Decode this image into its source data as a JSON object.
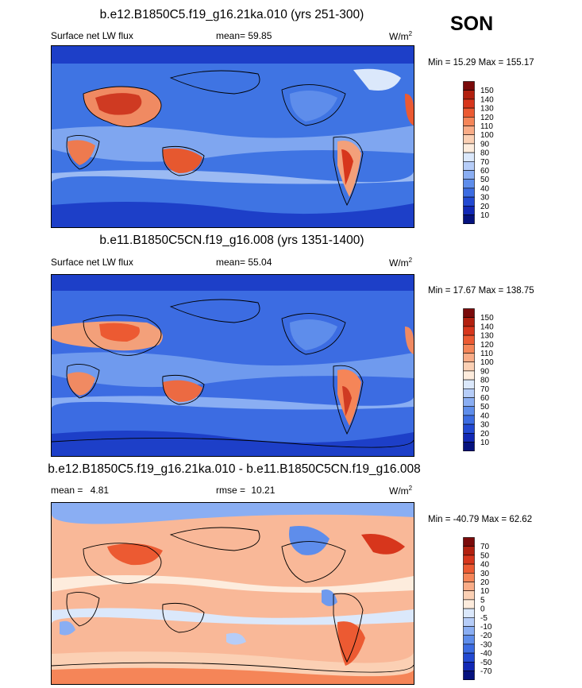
{
  "season": "SON",
  "panels": [
    {
      "title": "b.e12.B1850C5.f19_g16.21ka.010 (yrs 251-300)",
      "variable": "Surface net LW flux",
      "stat_label": "mean=",
      "stat_value": "59.85",
      "stat2_label": "",
      "stat2_value": "",
      "units": "W/m",
      "units_sup": "2",
      "min_label": "Min =",
      "min_value": "15.29",
      "max_label": "Max =",
      "max_value": "155.17",
      "colorbar": {
        "ticks": [
          "150",
          "140",
          "130",
          "120",
          "110",
          "100",
          "90",
          "80",
          "70",
          "60",
          "50",
          "40",
          "30",
          "20",
          "10"
        ],
        "colors": [
          "#7a0a0a",
          "#b2200f",
          "#d7361c",
          "#ec5a32",
          "#f58558",
          "#f9ac87",
          "#fbd0b4",
          "#fdecdd",
          "#dbe8fb",
          "#b6cdf8",
          "#8aaef3",
          "#5e8deb",
          "#3c6ce2",
          "#2249d2",
          "#1128b5",
          "#05127e"
        ]
      }
    },
    {
      "title": "b.e11.B1850C5CN.f19_g16.008 (yrs 1351-1400)",
      "variable": "Surface net LW flux",
      "stat_label": "mean=",
      "stat_value": "55.04",
      "stat2_label": "",
      "stat2_value": "",
      "units": "W/m",
      "units_sup": "2",
      "min_label": "Min =",
      "min_value": "17.67",
      "max_label": "Max =",
      "max_value": "138.75",
      "colorbar": {
        "ticks": [
          "150",
          "140",
          "130",
          "120",
          "110",
          "100",
          "90",
          "80",
          "70",
          "60",
          "50",
          "40",
          "30",
          "20",
          "10"
        ],
        "colors": [
          "#7a0a0a",
          "#b2200f",
          "#d7361c",
          "#ec5a32",
          "#f58558",
          "#f9ac87",
          "#fbd0b4",
          "#fdecdd",
          "#dbe8fb",
          "#b6cdf8",
          "#8aaef3",
          "#5e8deb",
          "#3c6ce2",
          "#2249d2",
          "#1128b5",
          "#05127e"
        ]
      }
    },
    {
      "title": "b.e12.B1850C5.f19_g16.21ka.010 - b.e11.B1850C5CN.f19_g16.008",
      "variable": "",
      "stat_label": "mean =",
      "stat_value": "4.81",
      "stat2_label": "rmse =",
      "stat2_value": "10.21",
      "units": "W/m",
      "units_sup": "2",
      "min_label": "Min =",
      "min_value": "-40.79",
      "max_label": "Max =",
      "max_value": "62.62",
      "colorbar": {
        "ticks": [
          "70",
          "50",
          "40",
          "30",
          "20",
          "10",
          "5",
          "0",
          "-5",
          "-10",
          "-20",
          "-30",
          "-40",
          "-50",
          "-70"
        ],
        "colors": [
          "#7a0a0a",
          "#b2200f",
          "#d7361c",
          "#ec5a32",
          "#f58558",
          "#f9ac87",
          "#fbd0b4",
          "#fdecdd",
          "#dbe8fb",
          "#b6cdf8",
          "#8aaef3",
          "#5e8deb",
          "#3c6ce2",
          "#2249d2",
          "#1128b5",
          "#05127e"
        ]
      }
    }
  ],
  "chart_data": {
    "type": "heatmap",
    "description_fields": "global contour maps of surface net longwave flux, season SON",
    "maps": [
      {
        "title": "b.e12.B1850C5.f19_g16.21ka.010 (yrs 251-300)",
        "mean": 59.85,
        "min": 15.29,
        "max": 155.17,
        "units": "W/m2",
        "levels": [
          10,
          20,
          30,
          40,
          50,
          60,
          70,
          80,
          90,
          100,
          110,
          120,
          130,
          140,
          150
        ]
      },
      {
        "title": "b.e11.B1850C5CN.f19_g16.008 (yrs 1351-1400)",
        "mean": 55.04,
        "min": 17.67,
        "max": 138.75,
        "units": "W/m2",
        "levels": [
          10,
          20,
          30,
          40,
          50,
          60,
          70,
          80,
          90,
          100,
          110,
          120,
          130,
          140,
          150
        ]
      },
      {
        "title": "b.e12.B1850C5.f19_g16.21ka.010 - b.e11.B1850C5CN.f19_g16.008",
        "mean": 4.81,
        "rmse": 10.21,
        "min": -40.79,
        "max": 62.62,
        "units": "W/m2",
        "levels": [
          -70,
          -50,
          -40,
          -30,
          -20,
          -10,
          -5,
          0,
          5,
          10,
          20,
          30,
          40,
          50,
          70
        ]
      }
    ]
  }
}
